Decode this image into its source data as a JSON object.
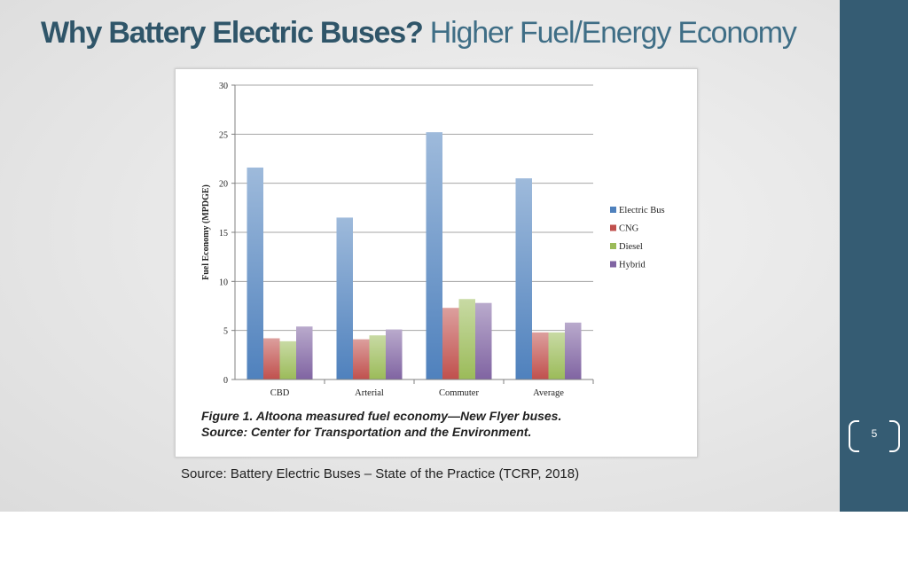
{
  "slide": {
    "title_bold": "Why Battery Electric Buses?",
    "title_rest": "Higher Fuel/Energy Economy",
    "source": "Source: Battery Electric Buses – State of the Practice (TCRP,  2018)",
    "page_number": "5",
    "colors": {
      "sidebar": "#355c73",
      "title": "#2f5569"
    }
  },
  "figure": {
    "caption_line1": "Figure 1.   Altoona measured fuel economy—New Flyer buses.",
    "caption_line2": "Source: Center for Transportation and the Environment."
  },
  "chart_data": {
    "type": "bar",
    "title": "",
    "xlabel": "",
    "ylabel": "Fuel Economy (MPDGE)",
    "ylim": [
      0,
      30
    ],
    "yticks": [
      0,
      5,
      10,
      15,
      20,
      25,
      30
    ],
    "grid": true,
    "legend_position": "right",
    "categories": [
      "CBD",
      "Arterial",
      "Commuter",
      "Average"
    ],
    "series": [
      {
        "name": "Electric Bus",
        "color": "#4f81bd",
        "values": [
          21.6,
          16.5,
          25.2,
          20.5
        ]
      },
      {
        "name": "CNG",
        "color": "#c0504d",
        "values": [
          4.2,
          4.1,
          7.3,
          4.8
        ]
      },
      {
        "name": "Diesel",
        "color": "#9bbb59",
        "values": [
          3.9,
          4.5,
          8.2,
          4.8
        ]
      },
      {
        "name": "Hybrid",
        "color": "#8064a2",
        "values": [
          5.4,
          5.1,
          7.8,
          5.8
        ]
      }
    ]
  }
}
